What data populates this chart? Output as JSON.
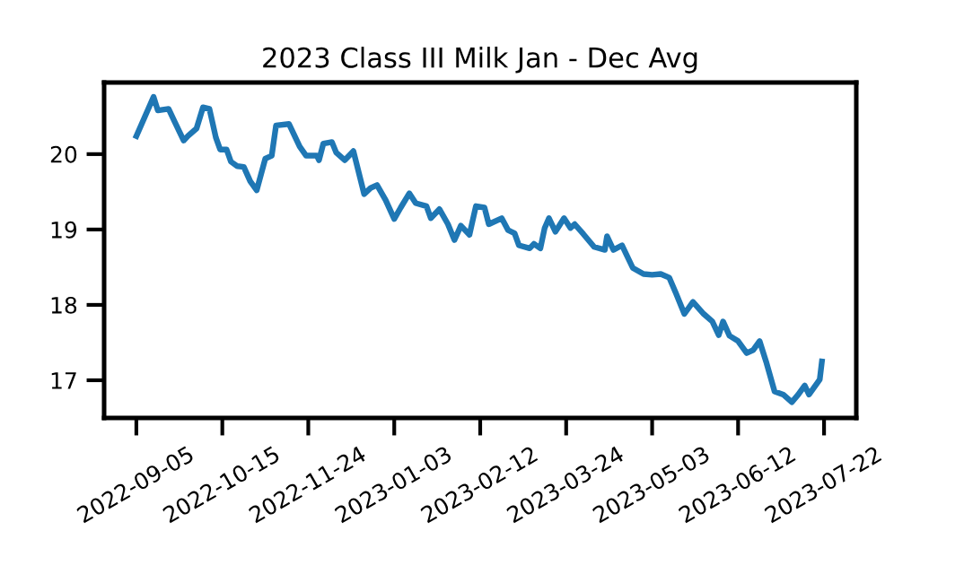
{
  "chart_data": {
    "type": "line",
    "title": "2023 Class III Milk Jan - Dec Avg",
    "x": [
      "2022-09-05",
      "2022-09-13",
      "2022-09-15",
      "2022-09-20",
      "2022-09-23",
      "2022-09-27",
      "2022-09-29",
      "2022-10-03",
      "2022-10-06",
      "2022-10-09",
      "2022-10-12",
      "2022-10-14",
      "2022-10-17",
      "2022-10-19",
      "2022-10-22",
      "2022-10-25",
      "2022-10-28",
      "2022-10-31",
      "2022-11-04",
      "2022-11-07",
      "2022-11-09",
      "2022-11-15",
      "2022-11-20",
      "2022-11-23",
      "2022-11-28",
      "2022-11-29",
      "2022-12-01",
      "2022-12-05",
      "2022-12-07",
      "2022-12-11",
      "2022-12-15",
      "2022-12-20",
      "2022-12-23",
      "2022-12-26",
      "2022-12-30",
      "2023-01-03",
      "2023-01-06",
      "2023-01-10",
      "2023-01-13",
      "2023-01-18",
      "2023-01-20",
      "2023-01-24",
      "2023-01-28",
      "2023-01-31",
      "2023-02-03",
      "2023-02-07",
      "2023-02-10",
      "2023-02-14",
      "2023-02-16",
      "2023-02-22",
      "2023-02-25",
      "2023-02-28",
      "2023-03-02",
      "2023-03-07",
      "2023-03-09",
      "2023-03-12",
      "2023-03-14",
      "2023-03-16",
      "2023-03-19",
      "2023-03-23",
      "2023-03-26",
      "2023-03-28",
      "2023-04-01",
      "2023-04-06",
      "2023-04-11",
      "2023-04-12",
      "2023-04-15",
      "2023-04-19",
      "2023-04-24",
      "2023-04-29",
      "2023-05-03",
      "2023-05-07",
      "2023-05-11",
      "2023-05-14",
      "2023-05-18",
      "2023-05-22",
      "2023-05-27",
      "2023-05-31",
      "2023-06-03",
      "2023-06-05",
      "2023-06-08",
      "2023-06-12",
      "2023-06-16",
      "2023-06-19",
      "2023-06-22",
      "2023-06-25",
      "2023-06-29",
      "2023-07-03",
      "2023-07-07",
      "2023-07-10",
      "2023-07-13",
      "2023-07-15",
      "2023-07-18",
      "2023-07-20",
      "2023-07-21"
    ],
    "series": [
      {
        "color": "#1f77b4",
        "values": [
          20.24,
          20.76,
          20.58,
          20.6,
          20.42,
          20.18,
          20.24,
          20.34,
          20.62,
          20.6,
          20.22,
          20.06,
          20.06,
          19.9,
          19.84,
          19.83,
          19.64,
          19.52,
          19.94,
          19.98,
          20.38,
          20.4,
          20.1,
          19.98,
          19.98,
          19.92,
          20.14,
          20.16,
          20.02,
          19.92,
          20.04,
          19.47,
          19.55,
          19.59,
          19.39,
          19.14,
          19.29,
          19.48,
          19.35,
          19.31,
          19.15,
          19.27,
          19.07,
          18.86,
          19.05,
          18.93,
          19.31,
          19.29,
          19.07,
          19.15,
          18.99,
          18.95,
          18.79,
          18.75,
          18.81,
          18.75,
          19.02,
          19.15,
          18.97,
          19.15,
          19.02,
          19.07,
          18.94,
          18.77,
          18.73,
          18.91,
          18.73,
          18.79,
          18.49,
          18.41,
          18.4,
          18.41,
          18.36,
          18.16,
          17.88,
          18.04,
          17.88,
          17.78,
          17.6,
          17.78,
          17.59,
          17.52,
          17.36,
          17.4,
          17.52,
          17.25,
          16.85,
          16.81,
          16.71,
          16.81,
          16.93,
          16.81,
          16.93,
          17.01,
          17.25
        ]
      }
    ],
    "xlim": [
      "2022-08-21",
      "2023-08-06"
    ],
    "xticks": [
      "2022-09-05",
      "2022-10-15",
      "2022-11-24",
      "2023-01-03",
      "2023-02-12",
      "2023-03-24",
      "2023-05-03",
      "2023-06-12",
      "2023-07-22"
    ],
    "ylim": [
      16.5,
      20.95
    ],
    "yticks": [
      17,
      18,
      19,
      20
    ],
    "grid": false,
    "legend": false,
    "line_style": "solid",
    "marker": "none"
  }
}
